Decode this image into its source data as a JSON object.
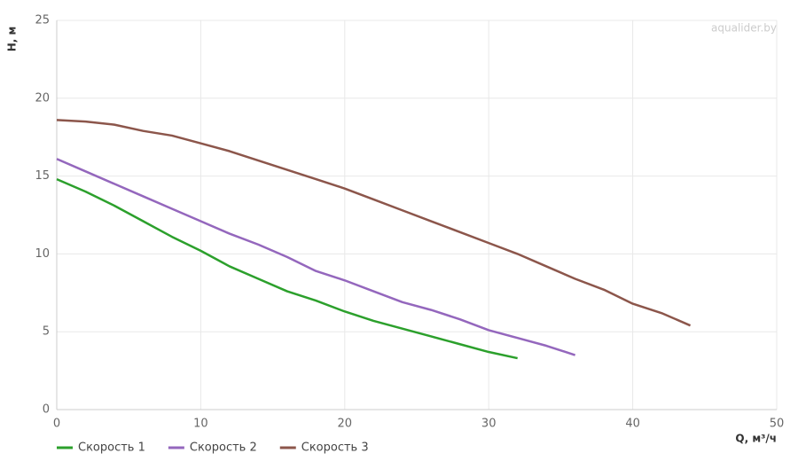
{
  "chart_data": {
    "type": "line",
    "x_label": "Q, м³/ч",
    "y_label": "H, м",
    "watermark": "aqualider.by",
    "xlim": [
      0,
      50
    ],
    "xticks": [
      0,
      10,
      20,
      30,
      40,
      50
    ],
    "ylim": [
      0,
      25
    ],
    "yticks": [
      0,
      5,
      10,
      15,
      20,
      25
    ],
    "grid": true,
    "legend": "bottom",
    "series": [
      {
        "name": "Скорость 1",
        "color": "#2ca02c",
        "x": [
          0,
          2,
          4,
          6,
          8,
          10,
          12,
          14,
          16,
          18,
          20,
          22,
          24,
          26,
          28,
          30,
          32
        ],
        "values": [
          14.8,
          14.0,
          13.1,
          12.1,
          11.1,
          10.2,
          9.2,
          8.4,
          7.6,
          7.0,
          6.3,
          5.7,
          5.2,
          4.7,
          4.2,
          3.7,
          3.3
        ]
      },
      {
        "name": "Скорость 2",
        "color": "#9467bd",
        "x": [
          0,
          2,
          4,
          6,
          8,
          10,
          12,
          14,
          16,
          18,
          20,
          22,
          24,
          26,
          28,
          30,
          32,
          34,
          36
        ],
        "values": [
          16.1,
          15.3,
          14.5,
          13.7,
          12.9,
          12.1,
          11.3,
          10.6,
          9.8,
          8.9,
          8.3,
          7.6,
          6.9,
          6.4,
          5.8,
          5.1,
          4.6,
          4.1,
          3.5
        ]
      },
      {
        "name": "Скорость 3",
        "color": "#8c564b",
        "x": [
          0,
          2,
          4,
          6,
          8,
          10,
          12,
          14,
          16,
          18,
          20,
          22,
          24,
          26,
          28,
          30,
          32,
          34,
          36,
          38,
          40,
          42,
          44
        ],
        "values": [
          18.6,
          18.5,
          18.3,
          17.9,
          17.6,
          17.1,
          16.6,
          16.0,
          15.4,
          14.8,
          14.2,
          13.5,
          12.8,
          12.1,
          11.4,
          10.7,
          10.0,
          9.2,
          8.4,
          7.7,
          6.8,
          6.2,
          5.4
        ]
      }
    ]
  }
}
